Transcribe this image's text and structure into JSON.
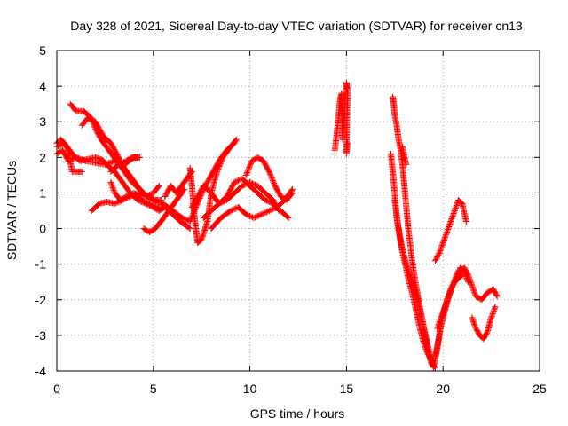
{
  "chart_data": {
    "type": "scatter",
    "title": "Day 328 of 2021, Sidereal Day-to-day VTEC variation (SDTVAR) for receiver cn13",
    "xlabel": "GPS time / hours",
    "ylabel": "SDTVAR / TECUs",
    "xlim": [
      0,
      25
    ],
    "ylim": [
      -4,
      5
    ],
    "xticks": [
      "0",
      "5",
      "10",
      "15",
      "20",
      "25"
    ],
    "yticks": [
      "-4",
      "-3",
      "-2",
      "-1",
      "0",
      "1",
      "2",
      "3",
      "4",
      "5"
    ],
    "grid": true,
    "grid_style": "dotted",
    "legend": "none",
    "marker": "+",
    "color": "#ff0000",
    "series": [
      {
        "x": [
          0.0,
          0.3,
          0.6,
          1.0,
          1.5,
          2.0,
          2.5,
          3.0,
          3.5,
          4.0,
          4.3
        ],
        "y": [
          2.1,
          2.2,
          1.9,
          2.0,
          1.9,
          1.85,
          1.8,
          1.9,
          1.8,
          2.0,
          2.0
        ]
      },
      {
        "x": [
          0.0,
          0.2,
          0.4,
          0.6,
          0.8,
          1.0,
          1.3
        ],
        "y": [
          2.4,
          2.5,
          2.4,
          2.2,
          1.6,
          1.6,
          1.6
        ]
      },
      {
        "x": [
          0.0,
          0.4,
          0.8,
          1.2,
          1.6,
          2.0,
          2.3,
          2.6,
          3.0,
          3.4,
          3.8,
          4.2,
          4.6,
          5.0,
          5.3,
          5.6,
          6.0,
          6.4,
          6.9
        ],
        "y": [
          2.3,
          2.4,
          2.1,
          1.9,
          1.95,
          2.0,
          1.95,
          1.8,
          1.6,
          1.3,
          1.0,
          0.8,
          0.7,
          0.6,
          0.5,
          0.6,
          0.4,
          0.2,
          0.0
        ]
      },
      {
        "x": [
          0.7,
          1.0,
          1.4,
          1.8,
          2.0,
          2.3,
          2.7,
          3.1,
          3.5,
          3.9,
          4.3,
          4.7,
          5.1,
          5.4
        ],
        "y": [
          3.5,
          3.3,
          3.3,
          3.1,
          2.8,
          2.5,
          2.2,
          1.9,
          1.6,
          1.3,
          1.1,
          0.9,
          0.8,
          0.8
        ]
      },
      {
        "x": [
          1.3,
          1.6,
          2.0,
          2.4,
          2.8,
          3.2,
          3.5,
          3.9,
          4.3,
          4.7,
          5.0,
          5.5,
          6.0,
          6.5,
          6.9
        ],
        "y": [
          2.9,
          3.1,
          3.0,
          2.6,
          2.4,
          2.0,
          1.7,
          1.4,
          1.1,
          0.9,
          0.8,
          0.7,
          0.5,
          0.3,
          0.2
        ]
      },
      {
        "x": [
          1.8,
          2.2,
          2.6,
          3.0,
          3.4,
          3.8,
          4.2,
          4.6,
          5.0,
          5.3
        ],
        "y": [
          0.5,
          0.7,
          0.75,
          0.7,
          0.8,
          0.9,
          1.0,
          0.9,
          1.0,
          1.2
        ]
      },
      {
        "x": [
          2.8,
          3.2,
          3.6,
          3.9,
          4.2
        ],
        "y": [
          1.6,
          1.8,
          1.9,
          2.0,
          2.0
        ]
      },
      {
        "x": [
          2.8,
          3.0,
          3.3,
          3.6,
          4.0,
          4.4,
          4.8,
          5.2,
          5.5
        ],
        "y": [
          1.3,
          1.0,
          0.8,
          0.9,
          1.0,
          0.8,
          0.7,
          0.6,
          0.6
        ]
      },
      {
        "x": [
          4.5,
          4.8,
          5.1,
          5.4,
          5.8,
          6.2,
          6.6
        ],
        "y": [
          0.0,
          -0.1,
          0.0,
          0.2,
          0.5,
          0.8,
          1.1
        ]
      },
      {
        "x": [
          5.6,
          5.9,
          6.2,
          6.6,
          7.0
        ],
        "y": [
          0.9,
          1.2,
          1.0,
          1.3,
          1.6
        ]
      },
      {
        "x": [
          6.9,
          7.0,
          7.1,
          7.2,
          7.3,
          7.5,
          7.8,
          8.0,
          8.3,
          8.6,
          9.0,
          9.3
        ],
        "y": [
          1.7,
          1.2,
          0.5,
          0.0,
          -0.4,
          -0.3,
          0.2,
          1.0,
          1.6,
          2.0,
          2.3,
          2.5
        ]
      },
      {
        "x": [
          6.9,
          7.2,
          7.6,
          8.0,
          8.4,
          8.8,
          9.2
        ],
        "y": [
          0.2,
          0.6,
          1.1,
          1.5,
          1.9,
          2.2,
          2.4
        ]
      },
      {
        "x": [
          7.0,
          7.3,
          7.6,
          8.0,
          8.4,
          8.8,
          9.2,
          9.6,
          10.0,
          10.4,
          10.8,
          11.2,
          11.5
        ],
        "y": [
          0.6,
          0.9,
          1.2,
          1.0,
          0.7,
          0.8,
          1.0,
          1.2,
          1.3,
          1.2,
          1.0,
          0.8,
          0.5
        ]
      },
      {
        "x": [
          7.6,
          8.0,
          8.4,
          8.8,
          9.2,
          9.6,
          10.0,
          10.4,
          10.8,
          11.2,
          11.6,
          12.0
        ],
        "y": [
          0.3,
          0.5,
          0.7,
          0.9,
          1.3,
          1.4,
          1.2,
          1.0,
          0.8,
          0.7,
          0.5,
          0.3
        ]
      },
      {
        "x": [
          8.0,
          8.5,
          9.0,
          9.4,
          9.8,
          10.2,
          10.6,
          11.0,
          11.4,
          11.8,
          12.2
        ],
        "y": [
          0.0,
          0.3,
          0.5,
          0.6,
          0.4,
          0.3,
          0.4,
          0.5,
          0.6,
          0.8,
          1.1
        ]
      },
      {
        "x": [
          9.8,
          10.1,
          10.4,
          10.7,
          11.0,
          11.3,
          11.6,
          11.9,
          12.2
        ],
        "y": [
          1.5,
          1.9,
          2.0,
          1.9,
          1.6,
          1.2,
          0.9,
          0.8,
          1.0
        ]
      },
      {
        "x": [
          14.4,
          14.5,
          14.6,
          14.65,
          14.7,
          14.75,
          14.8,
          15.0,
          15.05,
          15.0,
          15.05
        ],
        "y": [
          2.2,
          2.7,
          3.2,
          3.5,
          3.7,
          3.8,
          2.5,
          4.1,
          3.9,
          2.1,
          2.4
        ]
      },
      {
        "x": [
          17.4,
          17.45,
          17.5,
          17.6,
          17.7,
          17.8,
          17.9,
          18.0,
          18.2,
          18.4,
          18.6,
          18.8,
          19.0,
          19.2,
          19.4,
          19.6
        ],
        "y": [
          3.7,
          3.5,
          3.2,
          2.9,
          2.5,
          2.2,
          1.8,
          1.2,
          0.0,
          -0.9,
          -1.6,
          -2.2,
          -2.8,
          -3.4,
          -3.8,
          -3.9
        ]
      },
      {
        "x": [
          17.3,
          17.4,
          17.5,
          17.6,
          17.8,
          18.0,
          18.2,
          18.4,
          18.6,
          18.8,
          19.0,
          19.2,
          19.4,
          19.5
        ],
        "y": [
          2.1,
          1.6,
          1.0,
          0.3,
          -0.4,
          -0.9,
          -1.4,
          -1.8,
          -2.3,
          -2.8,
          -3.2,
          -3.5,
          -3.7,
          -3.8
        ]
      },
      {
        "x": [
          17.5,
          17.7,
          17.9,
          18.1,
          18.3,
          18.5,
          18.7,
          18.9,
          19.1,
          19.3,
          19.5
        ],
        "y": [
          0.8,
          0.0,
          -0.6,
          -1.0,
          -1.3,
          -1.6,
          -2.0,
          -2.5,
          -3.0,
          -3.5,
          -3.9
        ]
      },
      {
        "x": [
          17.9,
          18.0,
          18.1
        ],
        "y": [
          2.3,
          2.0,
          1.8
        ]
      },
      {
        "x": [
          19.5,
          19.7,
          19.9,
          20.1,
          20.3,
          20.5,
          20.7,
          20.9,
          21.1,
          21.3,
          21.5,
          21.7,
          22.0,
          22.3,
          22.6,
          22.8
        ],
        "y": [
          -3.9,
          -3.4,
          -2.7,
          -2.3,
          -1.9,
          -1.6,
          -1.4,
          -1.2,
          -1.1,
          -1.3,
          -1.6,
          -1.9,
          -2.0,
          -1.8,
          -1.7,
          -1.9
        ]
      },
      {
        "x": [
          19.6,
          19.8,
          20.0,
          20.2,
          20.4,
          20.6,
          20.8,
          21.0
        ],
        "y": [
          -3.6,
          -3.0,
          -2.4,
          -2.0,
          -1.7,
          -1.5,
          -1.4,
          -1.3
        ]
      },
      {
        "x": [
          19.7,
          19.9,
          20.1,
          20.3,
          20.5,
          20.7,
          20.9,
          21.1,
          21.3
        ],
        "y": [
          -2.8,
          -2.5,
          -2.2,
          -1.9,
          -1.6,
          -1.3,
          -1.1,
          -1.2,
          -1.5
        ]
      },
      {
        "x": [
          19.6,
          19.8,
          20.0,
          20.2,
          20.4,
          20.6,
          20.8,
          21.0,
          21.2
        ],
        "y": [
          -0.9,
          -0.7,
          -0.4,
          -0.1,
          0.2,
          0.5,
          0.8,
          0.7,
          0.2
        ]
      },
      {
        "x": [
          21.5,
          21.7,
          21.9,
          22.1,
          22.3,
          22.5,
          22.7
        ],
        "y": [
          -2.5,
          -2.8,
          -3.0,
          -3.1,
          -2.9,
          -2.5,
          -2.2
        ]
      }
    ]
  }
}
